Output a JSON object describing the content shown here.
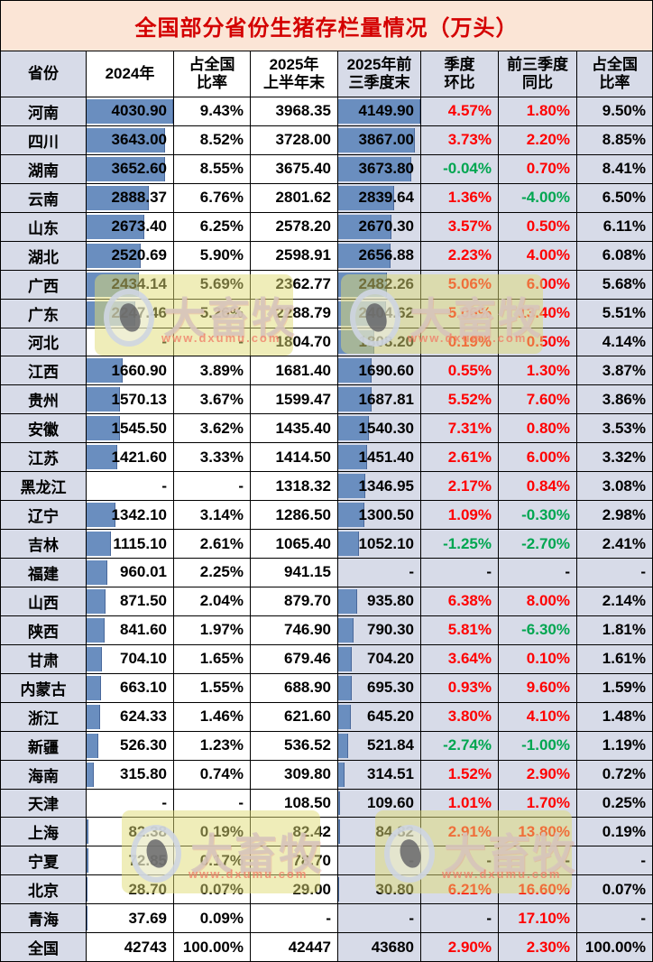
{
  "title": "全国部分省份生猪存栏量情况（万头）",
  "watermark": {
    "brand": "大畜牧",
    "url": "www.dxumu.com"
  },
  "colors": {
    "title_text": "#D40000",
    "title_bg": "#FBE5D6",
    "positive": "#FF0000",
    "negative": "#00A650",
    "bar": "#6A8EBF",
    "shaded_column_bg": "#D7DBE8"
  },
  "chart_data": {
    "type": "table",
    "title": "全国部分省份生猪存栏量情况（万头）",
    "headers": [
      "省份",
      "2024年",
      "占全国\n比率",
      "2025年\n上半年末",
      "2025年前\n三季度末",
      "季度\n环比",
      "前三季度\n同比",
      "占全国\n比率"
    ],
    "databar_columns": [
      1,
      4
    ],
    "total_label": "全国",
    "rows": [
      [
        "河南",
        "4030.90",
        "9.43%",
        "3968.35",
        "4149.90",
        "4.57%",
        "1.80%",
        "9.50%"
      ],
      [
        "四川",
        "3643.00",
        "8.52%",
        "3728.00",
        "3867.00",
        "3.73%",
        "2.20%",
        "8.85%"
      ],
      [
        "湖南",
        "3652.60",
        "8.55%",
        "3675.40",
        "3673.80",
        "-0.04%",
        "0.70%",
        "8.41%"
      ],
      [
        "云南",
        "2888.37",
        "6.76%",
        "2801.62",
        "2839.64",
        "1.36%",
        "-4.00%",
        "6.50%"
      ],
      [
        "山东",
        "2673.40",
        "6.25%",
        "2578.20",
        "2670.30",
        "3.57%",
        "0.50%",
        "6.11%"
      ],
      [
        "湖北",
        "2520.69",
        "5.90%",
        "2598.91",
        "2656.88",
        "2.23%",
        "4.00%",
        "6.08%"
      ],
      [
        "广西",
        "2434.14",
        "5.69%",
        "2362.77",
        "2482.26",
        "5.06%",
        "6.00%",
        "5.68%"
      ],
      [
        "广东",
        "2247.46",
        "5.26%",
        "2288.79",
        "2404.62",
        "5.06%",
        "13.40%",
        "5.51%"
      ],
      [
        "河北",
        "-",
        "-",
        "1804.70",
        "1808.20",
        "0.19%",
        "0.50%",
        "4.14%"
      ],
      [
        "江西",
        "1660.90",
        "3.89%",
        "1681.40",
        "1690.60",
        "0.55%",
        "1.30%",
        "3.87%"
      ],
      [
        "贵州",
        "1570.13",
        "3.67%",
        "1599.47",
        "1687.81",
        "5.52%",
        "7.60%",
        "3.86%"
      ],
      [
        "安徽",
        "1545.50",
        "3.62%",
        "1435.40",
        "1540.30",
        "7.31%",
        "0.80%",
        "3.53%"
      ],
      [
        "江苏",
        "1421.60",
        "3.33%",
        "1414.50",
        "1451.40",
        "2.61%",
        "6.00%",
        "3.32%"
      ],
      [
        "黑龙江",
        "-",
        "-",
        "1318.32",
        "1346.95",
        "2.17%",
        "0.84%",
        "3.08%"
      ],
      [
        "辽宁",
        "1342.10",
        "3.14%",
        "1286.50",
        "1300.50",
        "1.09%",
        "-0.30%",
        "2.98%"
      ],
      [
        "吉林",
        "1115.10",
        "2.61%",
        "1065.40",
        "1052.10",
        "-1.25%",
        "-2.70%",
        "2.41%"
      ],
      [
        "福建",
        "960.01",
        "2.25%",
        "941.15",
        "-",
        "-",
        "-",
        "-"
      ],
      [
        "山西",
        "871.50",
        "2.04%",
        "879.70",
        "935.80",
        "6.38%",
        "8.00%",
        "2.14%"
      ],
      [
        "陕西",
        "841.60",
        "1.97%",
        "746.90",
        "790.30",
        "5.81%",
        "-6.30%",
        "1.81%"
      ],
      [
        "甘肃",
        "704.10",
        "1.65%",
        "679.46",
        "704.20",
        "3.64%",
        "0.10%",
        "1.61%"
      ],
      [
        "内蒙古",
        "663.10",
        "1.55%",
        "688.90",
        "695.30",
        "0.93%",
        "9.60%",
        "1.59%"
      ],
      [
        "浙江",
        "624.33",
        "1.46%",
        "621.60",
        "645.20",
        "3.80%",
        "4.10%",
        "1.48%"
      ],
      [
        "新疆",
        "526.30",
        "1.23%",
        "536.52",
        "521.84",
        "-2.74%",
        "-1.00%",
        "1.19%"
      ],
      [
        "海南",
        "315.80",
        "0.74%",
        "309.80",
        "314.51",
        "1.52%",
        "2.90%",
        "0.72%"
      ],
      [
        "天津",
        "-",
        "-",
        "108.50",
        "109.60",
        "1.01%",
        "1.70%",
        "0.25%"
      ],
      [
        "上海",
        "82.38",
        "0.19%",
        "82.42",
        "84.82",
        "2.91%",
        "13.80%",
        "0.19%"
      ],
      [
        "宁夏",
        "72.85",
        "0.17%",
        "78.70",
        "-",
        "-",
        "-",
        "-"
      ],
      [
        "北京",
        "28.70",
        "0.07%",
        "29.00",
        "30.80",
        "6.21%",
        "16.60%",
        "0.07%"
      ],
      [
        "青海",
        "37.69",
        "0.09%",
        "-",
        "-",
        "-",
        "17.10%",
        "-"
      ],
      [
        "全国",
        "42743",
        "100.00%",
        "42447",
        "43680",
        "2.90%",
        "2.30%",
        "100.00%"
      ]
    ]
  }
}
